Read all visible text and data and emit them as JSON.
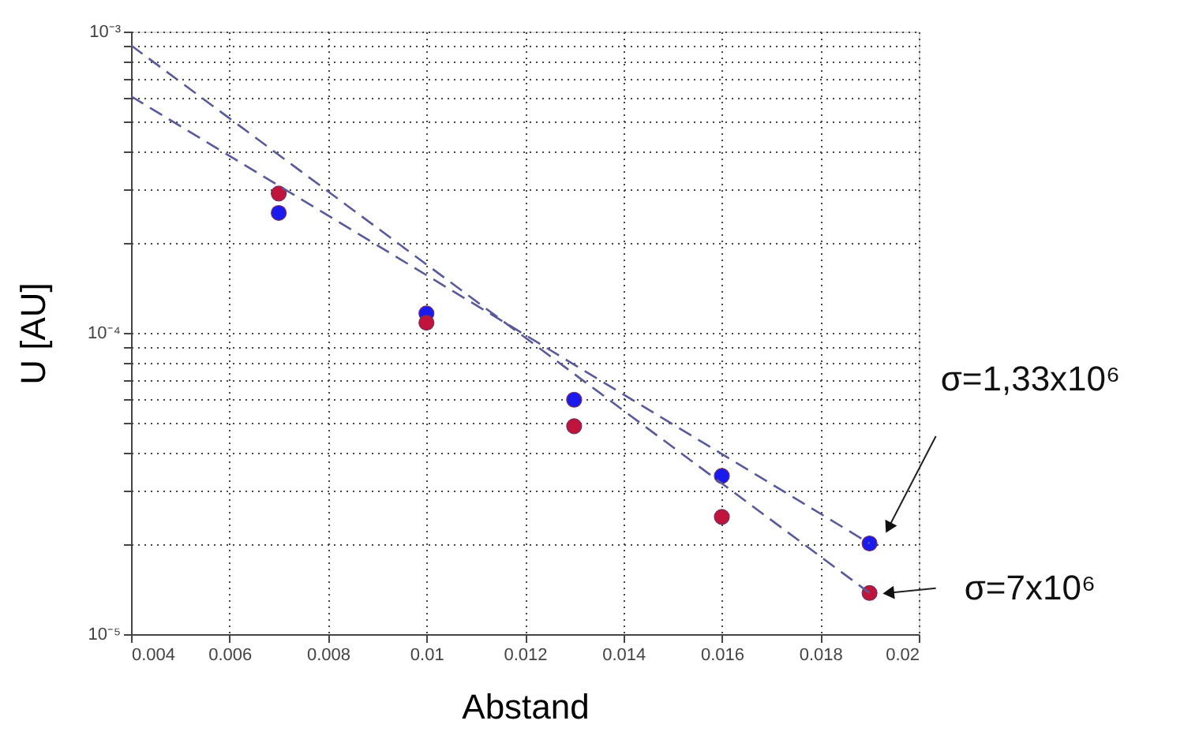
{
  "chart_data": {
    "type": "scatter",
    "xlabel": "Abstand",
    "ylabel": "U [AU]",
    "log": "y",
    "grid": true,
    "legend": false,
    "marker": "circle",
    "xlim": [
      0.004,
      0.02
    ],
    "xticks": [
      0.004,
      0.006,
      0.008,
      0.01,
      0.012,
      0.014,
      0.016,
      0.018,
      0.02
    ],
    "ylim": [
      1e-05,
      0.001
    ],
    "yticks": [
      {
        "value": 1e-05,
        "label": "10⁻⁵"
      },
      {
        "value": 2e-05,
        "label": null
      },
      {
        "value": 3e-05,
        "label": null
      },
      {
        "value": 4e-05,
        "label": null
      },
      {
        "value": 5e-05,
        "label": null
      },
      {
        "value": 6e-05,
        "label": null
      },
      {
        "value": 7e-05,
        "label": null
      },
      {
        "value": 8e-05,
        "label": null
      },
      {
        "value": 9e-05,
        "label": null
      },
      {
        "value": 0.0001,
        "label": "10⁻⁴"
      },
      {
        "value": 0.0002,
        "label": null
      },
      {
        "value": 0.0003,
        "label": null
      },
      {
        "value": 0.0004,
        "label": null
      },
      {
        "value": 0.0005,
        "label": null
      },
      {
        "value": 0.0006,
        "label": null
      },
      {
        "value": 0.0007,
        "label": null
      },
      {
        "value": 0.0008,
        "label": null
      },
      {
        "value": 0.0009,
        "label": null
      },
      {
        "value": 0.001,
        "label": "10⁻³"
      }
    ],
    "series": [
      {
        "name": "σ=1,33x10⁶",
        "color": "#1a1aee",
        "x": [
          0.007,
          0.01,
          0.013,
          0.016,
          0.019
        ],
        "values": [
          0.00025,
          0.000116,
          6e-05,
          3.35e-05,
          2e-05
        ]
      },
      {
        "name": "σ=7x10⁶",
        "color": "#c0143c",
        "x": [
          0.007,
          0.01,
          0.013,
          0.016,
          0.019
        ],
        "values": [
          0.00029,
          0.000108,
          4.9e-05,
          2.45e-05,
          1.37e-05
        ]
      },
      {
        "type": "line",
        "color": "#5a5a9a",
        "line_style": "dashed",
        "marker": "none",
        "x": [
          0.004,
          0.019
        ],
        "values": [
          0.00061,
          2e-05
        ]
      },
      {
        "type": "line",
        "color": "#5a5a9a",
        "line_style": "dashed",
        "marker": "none",
        "x": [
          0.004,
          0.019
        ],
        "values": [
          0.0009,
          1.37e-05
        ]
      }
    ]
  }
}
